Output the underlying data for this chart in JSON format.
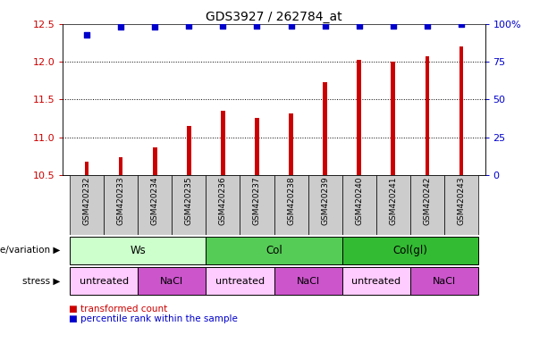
{
  "title": "GDS3927 / 262784_at",
  "samples": [
    "GSM420232",
    "GSM420233",
    "GSM420234",
    "GSM420235",
    "GSM420236",
    "GSM420237",
    "GSM420238",
    "GSM420239",
    "GSM420240",
    "GSM420241",
    "GSM420242",
    "GSM420243"
  ],
  "bar_values": [
    10.67,
    10.73,
    10.87,
    11.15,
    11.35,
    11.25,
    11.32,
    11.73,
    12.03,
    12.0,
    12.07,
    12.2
  ],
  "pct_ranks": [
    93,
    98,
    98,
    99,
    99,
    99,
    99,
    99,
    99,
    99,
    99,
    100
  ],
  "bar_color": "#cc0000",
  "dot_color": "#0000cc",
  "ylim_left": [
    10.5,
    12.5
  ],
  "ylim_right": [
    0,
    100
  ],
  "yticks_left": [
    10.5,
    11.0,
    11.5,
    12.0,
    12.5
  ],
  "yticks_right": [
    0,
    25,
    50,
    75,
    100
  ],
  "ytick_labels_right": [
    "0",
    "25",
    "50",
    "75",
    "100%"
  ],
  "genotype_groups": [
    {
      "label": "Ws",
      "start": 0,
      "end": 4,
      "color": "#ccffcc"
    },
    {
      "label": "Col",
      "start": 4,
      "end": 8,
      "color": "#55cc55"
    },
    {
      "label": "Col(gl)",
      "start": 8,
      "end": 12,
      "color": "#33bb33"
    }
  ],
  "stress_groups": [
    {
      "label": "untreated",
      "start": 0,
      "end": 2,
      "color": "#ffccff"
    },
    {
      "label": "NaCl",
      "start": 2,
      "end": 4,
      "color": "#cc55cc"
    },
    {
      "label": "untreated",
      "start": 4,
      "end": 6,
      "color": "#ffccff"
    },
    {
      "label": "NaCl",
      "start": 6,
      "end": 8,
      "color": "#cc55cc"
    },
    {
      "label": "untreated",
      "start": 8,
      "end": 10,
      "color": "#ffccff"
    },
    {
      "label": "NaCl",
      "start": 10,
      "end": 12,
      "color": "#cc55cc"
    }
  ],
  "legend_red_label": "transformed count",
  "legend_blue_label": "percentile rank within the sample",
  "genotype_label": "genotype/variation",
  "stress_label": "stress",
  "bg_color": "#ffffff",
  "tick_label_color_left": "#cc0000",
  "tick_label_color_right": "#0000cc",
  "sample_bg_color": "#cccccc",
  "bar_width": 0.12
}
